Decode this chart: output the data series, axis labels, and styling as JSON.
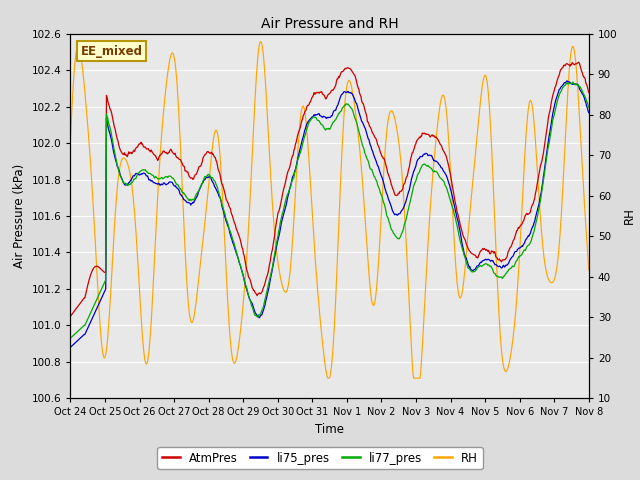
{
  "title": "Air Pressure and RH",
  "ylabel_left": "Air Pressure (kPa)",
  "ylabel_right": "RH",
  "xlabel": "Time",
  "ylim_left": [
    100.6,
    102.6
  ],
  "ylim_right": [
    10,
    100
  ],
  "annotation": "EE_mixed",
  "bg_color": "#e8e8e8",
  "fig_bg": "#dcdcdc",
  "legend_entries": [
    "AtmPres",
    "li75_pres",
    "li77_pres",
    "RH"
  ],
  "line_colors": {
    "AtmPres": "#cc0000",
    "li75_pres": "#0000cc",
    "li77_pres": "#00aa00",
    "RH": "#ffa500"
  },
  "xtick_labels": [
    "Oct 24",
    "Oct 25",
    "Oct 26",
    "Oct 27",
    "Oct 28",
    "Oct 29",
    "Oct 30",
    "Oct 31",
    "Nov 1",
    "Nov 2",
    "Nov 3",
    "Nov 4",
    "Nov 5",
    "Nov 6",
    "Nov 7",
    "Nov 8"
  ],
  "yticks_left": [
    100.6,
    100.8,
    101.0,
    101.2,
    101.4,
    101.6,
    101.8,
    102.0,
    102.2,
    102.4,
    102.6
  ],
  "yticks_right": [
    10,
    20,
    30,
    40,
    50,
    60,
    70,
    80,
    90,
    100
  ]
}
